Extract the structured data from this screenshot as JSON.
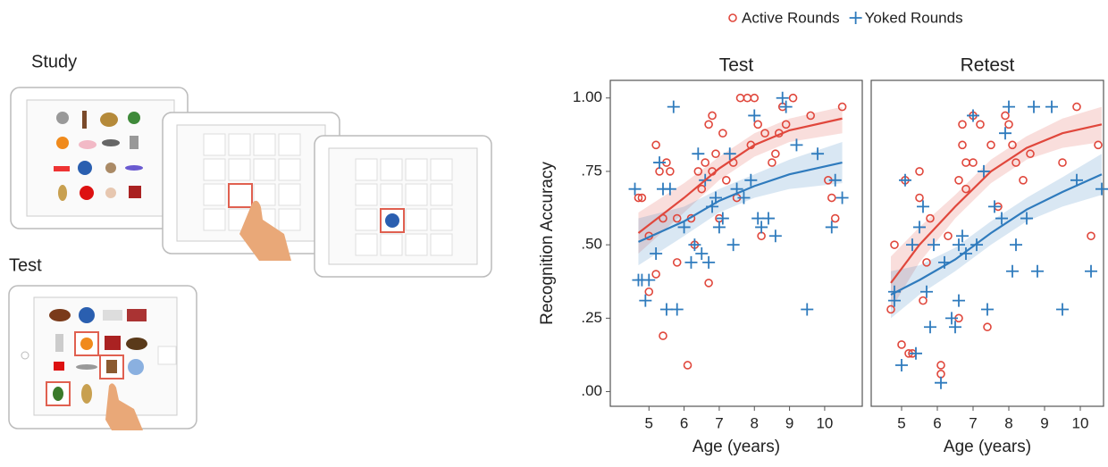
{
  "illustration": {
    "study_label": "Study",
    "test_label": "Test"
  },
  "chart_data": [
    {
      "type": "scatter",
      "title": "Test",
      "xlabel": "Age (years)",
      "ylabel": "Recognition Accuracy",
      "legend": "top",
      "xlim": [
        3.9,
        11.07
      ],
      "xticks": [
        5,
        6,
        7,
        8,
        9,
        10
      ],
      "ylim": [
        -0.05,
        1.06
      ],
      "yticks": [
        {
          "value": 0,
          "label": ".00"
        },
        {
          "value": 0.25,
          "label": ".25"
        },
        {
          "value": 0.5,
          "label": ".50"
        },
        {
          "value": 0.75,
          "label": ".75"
        },
        {
          "value": 1,
          "label": "1.00"
        }
      ],
      "series": [
        {
          "name": "Active Rounds",
          "color": "#e0473c",
          "marker": "circle",
          "x": [
            4.7,
            4.8,
            5.0,
            5.0,
            5.2,
            5.2,
            5.3,
            5.4,
            5.4,
            5.5,
            5.6,
            5.8,
            5.8,
            6.1,
            6.2,
            6.3,
            6.4,
            6.5,
            6.6,
            6.7,
            6.7,
            6.8,
            6.8,
            6.9,
            7.0,
            7.1,
            7.2,
            7.4,
            7.5,
            7.6,
            7.8,
            7.9,
            8.0,
            8.1,
            8.2,
            8.3,
            8.5,
            8.6,
            8.7,
            8.8,
            8.9,
            9.1,
            9.6,
            10.1,
            10.2,
            10.3,
            10.5
          ],
          "values": [
            0.66,
            0.66,
            0.34,
            0.53,
            0.4,
            0.84,
            0.75,
            0.19,
            0.59,
            0.78,
            0.75,
            0.44,
            0.59,
            0.09,
            0.59,
            0.5,
            0.75,
            0.69,
            0.78,
            0.91,
            0.37,
            0.94,
            0.75,
            0.81,
            0.59,
            0.88,
            0.72,
            0.78,
            0.66,
            1.0,
            1.0,
            0.84,
            1.0,
            0.91,
            0.53,
            0.88,
            0.78,
            0.81,
            0.88,
            0.97,
            0.91,
            1.0,
            0.94,
            0.72,
            0.66,
            0.59,
            0.97
          ],
          "fit": {
            "x": [
              4.7,
              6,
              7,
              8,
              9,
              10.5
            ],
            "values": [
              0.54,
              0.66,
              0.76,
              0.84,
              0.89,
              0.93
            ],
            "lower": [
              0.47,
              0.61,
              0.72,
              0.8,
              0.85,
              0.88
            ],
            "upper": [
              0.61,
              0.71,
              0.8,
              0.88,
              0.93,
              0.97
            ]
          }
        },
        {
          "name": "Yoked Rounds",
          "color": "#2f7bbd",
          "marker": "plus",
          "x": [
            4.6,
            4.7,
            4.8,
            4.9,
            5.0,
            5.2,
            5.3,
            5.4,
            5.5,
            5.6,
            5.7,
            5.8,
            6.0,
            6.2,
            6.3,
            6.4,
            6.5,
            6.6,
            6.7,
            6.8,
            6.9,
            7.0,
            7.1,
            7.3,
            7.4,
            7.5,
            7.7,
            7.9,
            8.0,
            8.1,
            8.2,
            8.4,
            8.6,
            8.8,
            8.9,
            9.2,
            9.5,
            9.8,
            10.2,
            10.3,
            10.5
          ],
          "values": [
            0.69,
            0.38,
            0.38,
            0.31,
            0.38,
            0.47,
            0.78,
            0.69,
            0.28,
            0.69,
            0.97,
            0.28,
            0.56,
            0.44,
            0.5,
            0.81,
            0.47,
            0.72,
            0.44,
            0.63,
            0.66,
            0.56,
            0.59,
            0.81,
            0.5,
            0.69,
            0.66,
            0.72,
            0.94,
            0.59,
            0.56,
            0.59,
            0.53,
            1.0,
            0.97,
            0.84,
            0.28,
            0.81,
            0.56,
            0.72,
            0.66
          ],
          "fit": {
            "x": [
              4.7,
              6,
              7,
              8,
              9,
              10.5
            ],
            "values": [
              0.51,
              0.58,
              0.65,
              0.7,
              0.74,
              0.78
            ],
            "lower": [
              0.43,
              0.53,
              0.61,
              0.66,
              0.69,
              0.71
            ],
            "upper": [
              0.59,
              0.63,
              0.69,
              0.74,
              0.79,
              0.85
            ]
          }
        }
      ]
    },
    {
      "type": "scatter",
      "title": "Retest",
      "xlabel": "Age (years)",
      "xlim": [
        4.15,
        10.65
      ],
      "xticks": [
        5,
        6,
        7,
        8,
        9,
        10
      ],
      "ylim": [
        -0.05,
        1.06
      ],
      "series": [
        {
          "name": "Active Rounds",
          "color": "#e0473c",
          "marker": "circle",
          "x": [
            4.7,
            4.8,
            5.0,
            5.1,
            5.2,
            5.3,
            5.5,
            5.5,
            5.6,
            5.7,
            5.8,
            6.1,
            6.1,
            6.3,
            6.6,
            6.6,
            6.7,
            6.7,
            6.8,
            6.8,
            7.0,
            7.0,
            7.2,
            7.4,
            7.5,
            7.7,
            7.9,
            8.0,
            8.1,
            8.2,
            8.4,
            8.6,
            9.5,
            9.9,
            10.3,
            10.5
          ],
          "values": [
            0.28,
            0.5,
            0.16,
            0.72,
            0.13,
            0.13,
            0.75,
            0.66,
            0.31,
            0.44,
            0.59,
            0.09,
            0.06,
            0.53,
            0.72,
            0.25,
            0.84,
            0.91,
            0.78,
            0.69,
            0.94,
            0.78,
            0.91,
            0.22,
            0.84,
            0.63,
            0.94,
            0.91,
            0.84,
            0.78,
            0.72,
            0.81,
            0.78,
            0.97,
            0.53,
            0.84
          ],
          "fit": {
            "x": [
              4.7,
              5.5,
              6.5,
              7.5,
              8.5,
              9.5,
              10.6
            ],
            "values": [
              0.37,
              0.5,
              0.63,
              0.75,
              0.83,
              0.88,
              0.91
            ],
            "lower": [
              0.28,
              0.44,
              0.59,
              0.71,
              0.79,
              0.83,
              0.85
            ],
            "upper": [
              0.46,
              0.56,
              0.67,
              0.79,
              0.87,
              0.93,
              0.97
            ]
          }
        },
        {
          "name": "Yoked Rounds",
          "color": "#2f7bbd",
          "marker": "plus",
          "x": [
            4.8,
            4.8,
            5.0,
            5.1,
            5.3,
            5.4,
            5.5,
            5.6,
            5.7,
            5.8,
            5.9,
            6.1,
            6.2,
            6.4,
            6.5,
            6.6,
            6.6,
            6.7,
            6.8,
            7.0,
            7.1,
            7.3,
            7.4,
            7.6,
            7.8,
            7.9,
            8.0,
            8.1,
            8.2,
            8.5,
            8.7,
            8.8,
            9.2,
            9.5,
            9.9,
            10.3,
            10.6
          ],
          "values": [
            0.31,
            0.34,
            0.09,
            0.72,
            0.5,
            0.13,
            0.56,
            0.63,
            0.34,
            0.22,
            0.5,
            0.03,
            0.44,
            0.25,
            0.22,
            0.31,
            0.5,
            0.53,
            0.47,
            0.94,
            0.5,
            0.75,
            0.28,
            0.63,
            0.59,
            0.88,
            0.97,
            0.41,
            0.5,
            0.59,
            0.97,
            0.41,
            0.97,
            0.28,
            0.72,
            0.41,
            0.69
          ],
          "fit": {
            "x": [
              4.7,
              5.5,
              6.5,
              7.5,
              8.5,
              9.5,
              10.6
            ],
            "values": [
              0.33,
              0.38,
              0.45,
              0.54,
              0.62,
              0.68,
              0.74
            ],
            "lower": [
              0.25,
              0.33,
              0.41,
              0.5,
              0.58,
              0.63,
              0.67
            ],
            "upper": [
              0.41,
              0.43,
              0.49,
              0.58,
              0.66,
              0.73,
              0.81
            ]
          }
        }
      ]
    }
  ]
}
